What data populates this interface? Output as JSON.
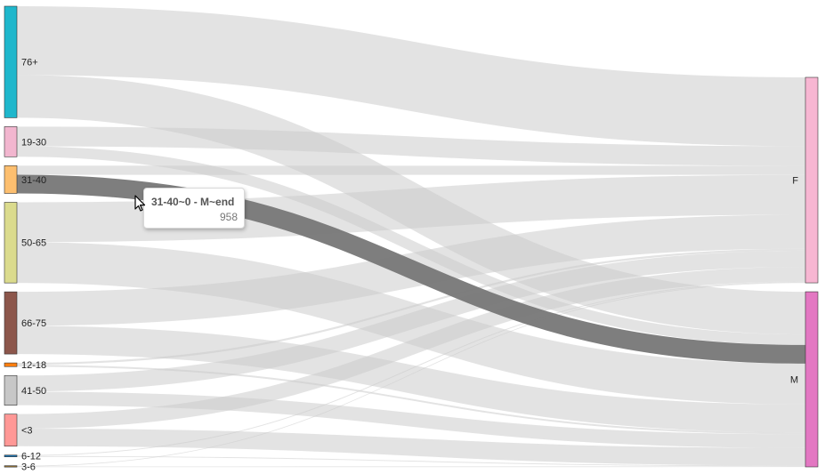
{
  "chart_data": {
    "type": "sankey",
    "nodes": [
      {
        "id": "76+",
        "label": "76+",
        "color": "#1fb7cc",
        "column": 0
      },
      {
        "id": "19-30",
        "label": "19-30",
        "color": "#f2b6cf",
        "column": 0
      },
      {
        "id": "31-40",
        "label": "31-40",
        "color": "#fdbf6f",
        "column": 0
      },
      {
        "id": "50-65",
        "label": "50-65",
        "color": "#dbdb8d",
        "column": 0
      },
      {
        "id": "66-75",
        "label": "66-75",
        "color": "#8c564b",
        "column": 0
      },
      {
        "id": "12-18",
        "label": "12-18",
        "color": "#ff7f0e",
        "column": 0
      },
      {
        "id": "41-50",
        "label": "41-50",
        "color": "#c7c7c7",
        "column": 0
      },
      {
        "id": "<3",
        "label": "<3",
        "color": "#ff9896",
        "column": 0
      },
      {
        "id": "6-12",
        "label": "6-12",
        "color": "#1f77b4",
        "column": 0
      },
      {
        "id": "3-6",
        "label": "3-6",
        "color": "#8c6d31",
        "column": 0
      },
      {
        "id": "F",
        "label": "F",
        "color": "#f7b6d2",
        "column": 1
      },
      {
        "id": "M",
        "label": "M",
        "color": "#e377c2",
        "column": 1
      }
    ],
    "links": [
      {
        "source": "76+",
        "target": "F",
        "value": 3540
      },
      {
        "source": "76+",
        "target": "M",
        "value": 2200
      },
      {
        "source": "19-30",
        "target": "F",
        "value": 1010
      },
      {
        "source": "19-30",
        "target": "M",
        "value": 540
      },
      {
        "source": "31-40",
        "target": "F",
        "value": 470
      },
      {
        "source": "31-40",
        "target": "M",
        "value": 958
      },
      {
        "source": "50-65",
        "target": "F",
        "value": 2050
      },
      {
        "source": "50-65",
        "target": "M",
        "value": 2100
      },
      {
        "source": "66-75",
        "target": "F",
        "value": 1750
      },
      {
        "source": "66-75",
        "target": "M",
        "value": 1450
      },
      {
        "source": "12-18",
        "target": "F",
        "value": 100
      },
      {
        "source": "12-18",
        "target": "M",
        "value": 90
      },
      {
        "source": "41-50",
        "target": "F",
        "value": 830
      },
      {
        "source": "41-50",
        "target": "M",
        "value": 700
      },
      {
        "source": "<3",
        "target": "F",
        "value": 750
      },
      {
        "source": "<3",
        "target": "M",
        "value": 900
      },
      {
        "source": "6-12",
        "target": "F",
        "value": 45
      },
      {
        "source": "6-12",
        "target": "M",
        "value": 45
      },
      {
        "source": "3-6",
        "target": "F",
        "value": 30
      },
      {
        "source": "3-6",
        "target": "M",
        "value": 30
      }
    ],
    "highlighted_link": {
      "source": "31-40",
      "target": "M"
    },
    "link_color": "#cccccc",
    "link_highlight_color": "#777777"
  },
  "tooltip": {
    "title": "31-40~0 - M~end",
    "value": "958"
  }
}
